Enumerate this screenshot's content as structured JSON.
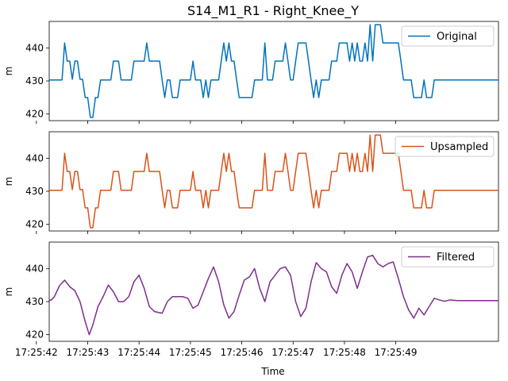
{
  "chart_data": {
    "type": "line",
    "title": "S14_M1_R1 - Right_Knee_Y",
    "xlabel": "Time",
    "ylabel": "m",
    "x_range": [
      "17:25:42.25",
      "17:25:49.00"
    ],
    "x_ticks": [
      "17:25:42",
      "17:25:43",
      "17:25:44",
      "17:25:45",
      "17:25:46",
      "17:25:47",
      "17:25:48",
      "17:25:49"
    ],
    "ylim": [
      418,
      448
    ],
    "y_ticks": [
      420,
      430,
      440
    ],
    "grid": false,
    "legend_placement": "top-right",
    "panels": [
      {
        "legend": "Original",
        "color": "#0072BD",
        "style": "step",
        "points": [
          [
            0.25,
            430.3
          ],
          [
            0.5,
            430.3
          ],
          [
            0.55,
            441.5
          ],
          [
            0.6,
            436
          ],
          [
            0.65,
            436
          ],
          [
            0.7,
            430.5
          ],
          [
            0.75,
            436
          ],
          [
            0.8,
            436
          ],
          [
            0.85,
            430.5
          ],
          [
            0.9,
            430.5
          ],
          [
            0.95,
            425
          ],
          [
            1.0,
            425
          ],
          [
            1.05,
            419
          ],
          [
            1.1,
            419
          ],
          [
            1.15,
            425
          ],
          [
            1.2,
            425
          ],
          [
            1.25,
            430.3
          ],
          [
            1.45,
            430.3
          ],
          [
            1.5,
            436
          ],
          [
            1.6,
            436
          ],
          [
            1.65,
            430.3
          ],
          [
            1.85,
            430.3
          ],
          [
            1.9,
            436
          ],
          [
            2.1,
            436
          ],
          [
            2.15,
            441.5
          ],
          [
            2.2,
            436
          ],
          [
            2.4,
            436
          ],
          [
            2.45,
            430.3
          ],
          [
            2.5,
            425
          ],
          [
            2.55,
            430.3
          ],
          [
            2.6,
            430.3
          ],
          [
            2.65,
            425
          ],
          [
            2.75,
            425
          ],
          [
            2.8,
            430.3
          ],
          [
            3.0,
            430.3
          ],
          [
            3.05,
            436
          ],
          [
            3.1,
            430.3
          ],
          [
            3.2,
            430.3
          ],
          [
            3.25,
            425
          ],
          [
            3.3,
            430.3
          ],
          [
            3.35,
            425
          ],
          [
            3.4,
            430.3
          ],
          [
            3.55,
            430.3
          ],
          [
            3.6,
            436
          ],
          [
            3.65,
            441.5
          ],
          [
            3.7,
            436
          ],
          [
            3.75,
            441.5
          ],
          [
            3.8,
            436
          ],
          [
            3.85,
            436
          ],
          [
            3.9,
            430.3
          ],
          [
            3.95,
            425
          ],
          [
            4.2,
            425
          ],
          [
            4.25,
            430.3
          ],
          [
            4.4,
            430.3
          ],
          [
            4.45,
            441.5
          ],
          [
            4.5,
            430.3
          ],
          [
            4.6,
            430.3
          ],
          [
            4.65,
            436
          ],
          [
            4.8,
            436
          ],
          [
            4.85,
            441.5
          ],
          [
            4.9,
            436
          ],
          [
            4.95,
            430.3
          ],
          [
            5.0,
            430.3
          ],
          [
            5.05,
            436
          ],
          [
            5.1,
            441.5
          ],
          [
            5.15,
            441.5
          ],
          [
            5.25,
            441.5
          ],
          [
            5.3,
            436
          ],
          [
            5.35,
            430.3
          ],
          [
            5.4,
            425
          ],
          [
            5.45,
            430.3
          ],
          [
            5.5,
            425
          ],
          [
            5.55,
            430.3
          ],
          [
            5.7,
            430.3
          ],
          [
            5.75,
            436
          ],
          [
            5.85,
            436
          ],
          [
            5.9,
            441.5
          ],
          [
            6.05,
            441.5
          ],
          [
            6.1,
            436
          ],
          [
            6.15,
            441.5
          ],
          [
            6.2,
            436
          ],
          [
            6.25,
            441.5
          ],
          [
            6.3,
            436
          ],
          [
            6.35,
            436
          ],
          [
            6.4,
            441.5
          ],
          [
            6.45,
            436
          ],
          [
            6.5,
            447
          ],
          [
            6.55,
            436
          ],
          [
            6.6,
            447
          ],
          [
            6.7,
            447
          ],
          [
            6.75,
            441.5
          ],
          [
            7.05,
            441.5
          ],
          [
            7.1,
            436
          ],
          [
            7.15,
            430.3
          ],
          [
            7.3,
            430.3
          ],
          [
            7.35,
            425
          ],
          [
            7.5,
            425
          ],
          [
            7.55,
            430.3
          ],
          [
            7.6,
            425
          ],
          [
            7.7,
            425
          ],
          [
            7.75,
            430.3
          ],
          [
            9.0,
            430.3
          ]
        ]
      },
      {
        "legend": "Upsampled",
        "color": "#D95319",
        "style": "step",
        "points": [
          [
            0.25,
            430.3
          ],
          [
            0.5,
            430.3
          ],
          [
            0.55,
            441.5
          ],
          [
            0.6,
            436
          ],
          [
            0.65,
            436
          ],
          [
            0.7,
            430.5
          ],
          [
            0.75,
            436
          ],
          [
            0.8,
            436
          ],
          [
            0.85,
            430.5
          ],
          [
            0.9,
            430.5
          ],
          [
            0.95,
            425
          ],
          [
            1.0,
            425
          ],
          [
            1.05,
            419
          ],
          [
            1.1,
            419
          ],
          [
            1.15,
            425
          ],
          [
            1.2,
            425
          ],
          [
            1.25,
            430.3
          ],
          [
            1.45,
            430.3
          ],
          [
            1.5,
            436
          ],
          [
            1.6,
            436
          ],
          [
            1.65,
            430.3
          ],
          [
            1.85,
            430.3
          ],
          [
            1.9,
            436
          ],
          [
            2.1,
            436
          ],
          [
            2.15,
            441.5
          ],
          [
            2.2,
            436
          ],
          [
            2.4,
            436
          ],
          [
            2.45,
            430.3
          ],
          [
            2.5,
            425
          ],
          [
            2.55,
            430.3
          ],
          [
            2.6,
            430.3
          ],
          [
            2.65,
            425
          ],
          [
            2.75,
            425
          ],
          [
            2.8,
            430.3
          ],
          [
            3.0,
            430.3
          ],
          [
            3.05,
            436
          ],
          [
            3.1,
            430.3
          ],
          [
            3.2,
            430.3
          ],
          [
            3.25,
            425
          ],
          [
            3.3,
            430.3
          ],
          [
            3.35,
            425
          ],
          [
            3.4,
            430.3
          ],
          [
            3.55,
            430.3
          ],
          [
            3.6,
            436
          ],
          [
            3.65,
            441.5
          ],
          [
            3.7,
            436
          ],
          [
            3.75,
            441.5
          ],
          [
            3.8,
            436
          ],
          [
            3.85,
            436
          ],
          [
            3.9,
            430.3
          ],
          [
            3.95,
            425
          ],
          [
            4.2,
            425
          ],
          [
            4.25,
            430.3
          ],
          [
            4.4,
            430.3
          ],
          [
            4.45,
            441.5
          ],
          [
            4.5,
            430.3
          ],
          [
            4.6,
            430.3
          ],
          [
            4.65,
            436
          ],
          [
            4.8,
            436
          ],
          [
            4.85,
            441.5
          ],
          [
            4.9,
            436
          ],
          [
            4.95,
            430.3
          ],
          [
            5.0,
            430.3
          ],
          [
            5.05,
            436
          ],
          [
            5.1,
            441.5
          ],
          [
            5.15,
            441.5
          ],
          [
            5.25,
            441.5
          ],
          [
            5.3,
            436
          ],
          [
            5.35,
            430.3
          ],
          [
            5.4,
            425
          ],
          [
            5.45,
            430.3
          ],
          [
            5.5,
            425
          ],
          [
            5.55,
            430.3
          ],
          [
            5.7,
            430.3
          ],
          [
            5.75,
            436
          ],
          [
            5.85,
            436
          ],
          [
            5.9,
            441.5
          ],
          [
            6.05,
            441.5
          ],
          [
            6.1,
            436
          ],
          [
            6.15,
            441.5
          ],
          [
            6.2,
            436
          ],
          [
            6.25,
            441.5
          ],
          [
            6.3,
            436
          ],
          [
            6.35,
            436
          ],
          [
            6.4,
            441.5
          ],
          [
            6.45,
            436
          ],
          [
            6.5,
            447
          ],
          [
            6.55,
            436
          ],
          [
            6.6,
            447
          ],
          [
            6.7,
            447
          ],
          [
            6.75,
            441.5
          ],
          [
            7.05,
            441.5
          ],
          [
            7.1,
            436
          ],
          [
            7.15,
            430.3
          ],
          [
            7.3,
            430.3
          ],
          [
            7.35,
            425
          ],
          [
            7.5,
            425
          ],
          [
            7.55,
            430.3
          ],
          [
            7.6,
            425
          ],
          [
            7.7,
            425
          ],
          [
            7.75,
            430.3
          ],
          [
            9.0,
            430.3
          ]
        ]
      },
      {
        "legend": "Filtered",
        "color": "#7E2F8E",
        "style": "smooth",
        "points": [
          [
            0.25,
            430.3
          ],
          [
            0.3,
            430.6
          ],
          [
            0.35,
            431.5
          ],
          [
            0.45,
            434.8
          ],
          [
            0.55,
            436.5
          ],
          [
            0.65,
            434.5
          ],
          [
            0.75,
            433.3
          ],
          [
            0.85,
            430
          ],
          [
            0.95,
            424
          ],
          [
            1.03,
            420
          ],
          [
            1.1,
            423
          ],
          [
            1.2,
            428.5
          ],
          [
            1.3,
            431.5
          ],
          [
            1.4,
            435
          ],
          [
            1.5,
            433
          ],
          [
            1.6,
            430
          ],
          [
            1.7,
            430
          ],
          [
            1.8,
            431.5
          ],
          [
            1.9,
            436
          ],
          [
            2.0,
            438
          ],
          [
            2.1,
            434
          ],
          [
            2.2,
            428.5
          ],
          [
            2.3,
            427
          ],
          [
            2.45,
            426.5
          ],
          [
            2.55,
            430
          ],
          [
            2.65,
            431.5
          ],
          [
            2.75,
            431.5
          ],
          [
            2.85,
            431.5
          ],
          [
            2.95,
            431
          ],
          [
            3.05,
            428
          ],
          [
            3.15,
            429
          ],
          [
            3.25,
            433
          ],
          [
            3.35,
            437
          ],
          [
            3.45,
            440.5
          ],
          [
            3.55,
            436
          ],
          [
            3.65,
            429
          ],
          [
            3.75,
            425
          ],
          [
            3.85,
            427
          ],
          [
            3.95,
            432
          ],
          [
            4.05,
            436.5
          ],
          [
            4.15,
            437.5
          ],
          [
            4.25,
            440
          ],
          [
            4.35,
            434
          ],
          [
            4.45,
            430
          ],
          [
            4.55,
            436
          ],
          [
            4.65,
            438
          ],
          [
            4.75,
            440
          ],
          [
            4.85,
            440.5
          ],
          [
            4.95,
            438
          ],
          [
            5.05,
            430
          ],
          [
            5.15,
            425.5
          ],
          [
            5.25,
            428
          ],
          [
            5.35,
            436
          ],
          [
            5.45,
            441.8
          ],
          [
            5.55,
            440
          ],
          [
            5.65,
            439
          ],
          [
            5.75,
            434.5
          ],
          [
            5.85,
            432.5
          ],
          [
            5.95,
            438
          ],
          [
            6.05,
            441.5
          ],
          [
            6.15,
            439
          ],
          [
            6.25,
            434
          ],
          [
            6.35,
            439
          ],
          [
            6.45,
            443.5
          ],
          [
            6.55,
            444
          ],
          [
            6.65,
            441.5
          ],
          [
            6.75,
            440.5
          ],
          [
            6.85,
            441.5
          ],
          [
            6.95,
            442
          ],
          [
            7.05,
            437
          ],
          [
            7.15,
            431.5
          ],
          [
            7.25,
            427.5
          ],
          [
            7.35,
            425
          ],
          [
            7.45,
            428
          ],
          [
            7.55,
            426
          ],
          [
            7.65,
            428.5
          ],
          [
            7.75,
            431
          ],
          [
            7.85,
            430.5
          ],
          [
            7.95,
            430.1
          ],
          [
            8.05,
            430.5
          ],
          [
            8.2,
            430.3
          ],
          [
            9.0,
            430.3
          ]
        ]
      }
    ]
  }
}
